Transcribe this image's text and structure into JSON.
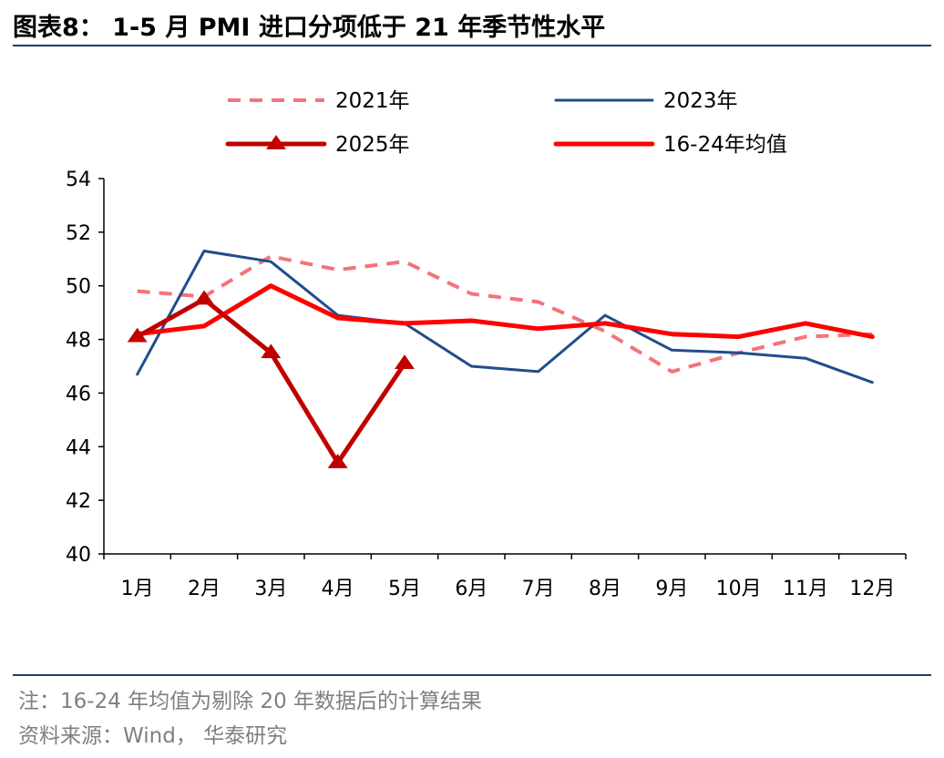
{
  "header": {
    "title": "图表8： 1-5 月 PMI 进口分项低于 21 年季节性水平"
  },
  "footer": {
    "note": "注：16-24 年均值为剔除 20 年数据后的计算结果",
    "source": "资料来源：Wind， 华泰研究"
  },
  "chart_data": {
    "type": "line",
    "title": "",
    "xlabel": "",
    "ylabel": "",
    "categories": [
      "1月",
      "2月",
      "3月",
      "4月",
      "5月",
      "6月",
      "7月",
      "8月",
      "9月",
      "10月",
      "11月",
      "12月"
    ],
    "ylim": [
      40,
      54
    ],
    "yticks": [
      "40",
      "42",
      "44",
      "46",
      "48",
      "50",
      "52",
      "54"
    ],
    "grid": false,
    "legend_position": "top",
    "series": [
      {
        "name": "2021年",
        "color": "#f4737a",
        "style": "dashed",
        "values": [
          49.8,
          49.6,
          51.1,
          50.6,
          50.9,
          49.7,
          49.4,
          48.3,
          46.8,
          47.5,
          48.1,
          48.2
        ]
      },
      {
        "name": "2023年",
        "color": "#1f4e8c",
        "style": "solid",
        "values": [
          46.7,
          51.3,
          50.9,
          48.9,
          48.6,
          47.0,
          46.8,
          48.9,
          47.6,
          47.5,
          47.3,
          46.4
        ]
      },
      {
        "name": "2025年",
        "color": "#c00000",
        "style": "solid-triangle",
        "values": [
          48.1,
          49.5,
          47.5,
          43.4,
          47.1,
          null,
          null,
          null,
          null,
          null,
          null,
          null
        ]
      },
      {
        "name": "16-24年均值",
        "color": "#ff0000",
        "style": "solid-thick",
        "values": [
          48.2,
          48.5,
          50.0,
          48.8,
          48.6,
          48.7,
          48.4,
          48.6,
          48.2,
          48.1,
          48.6,
          48.1
        ]
      }
    ]
  }
}
